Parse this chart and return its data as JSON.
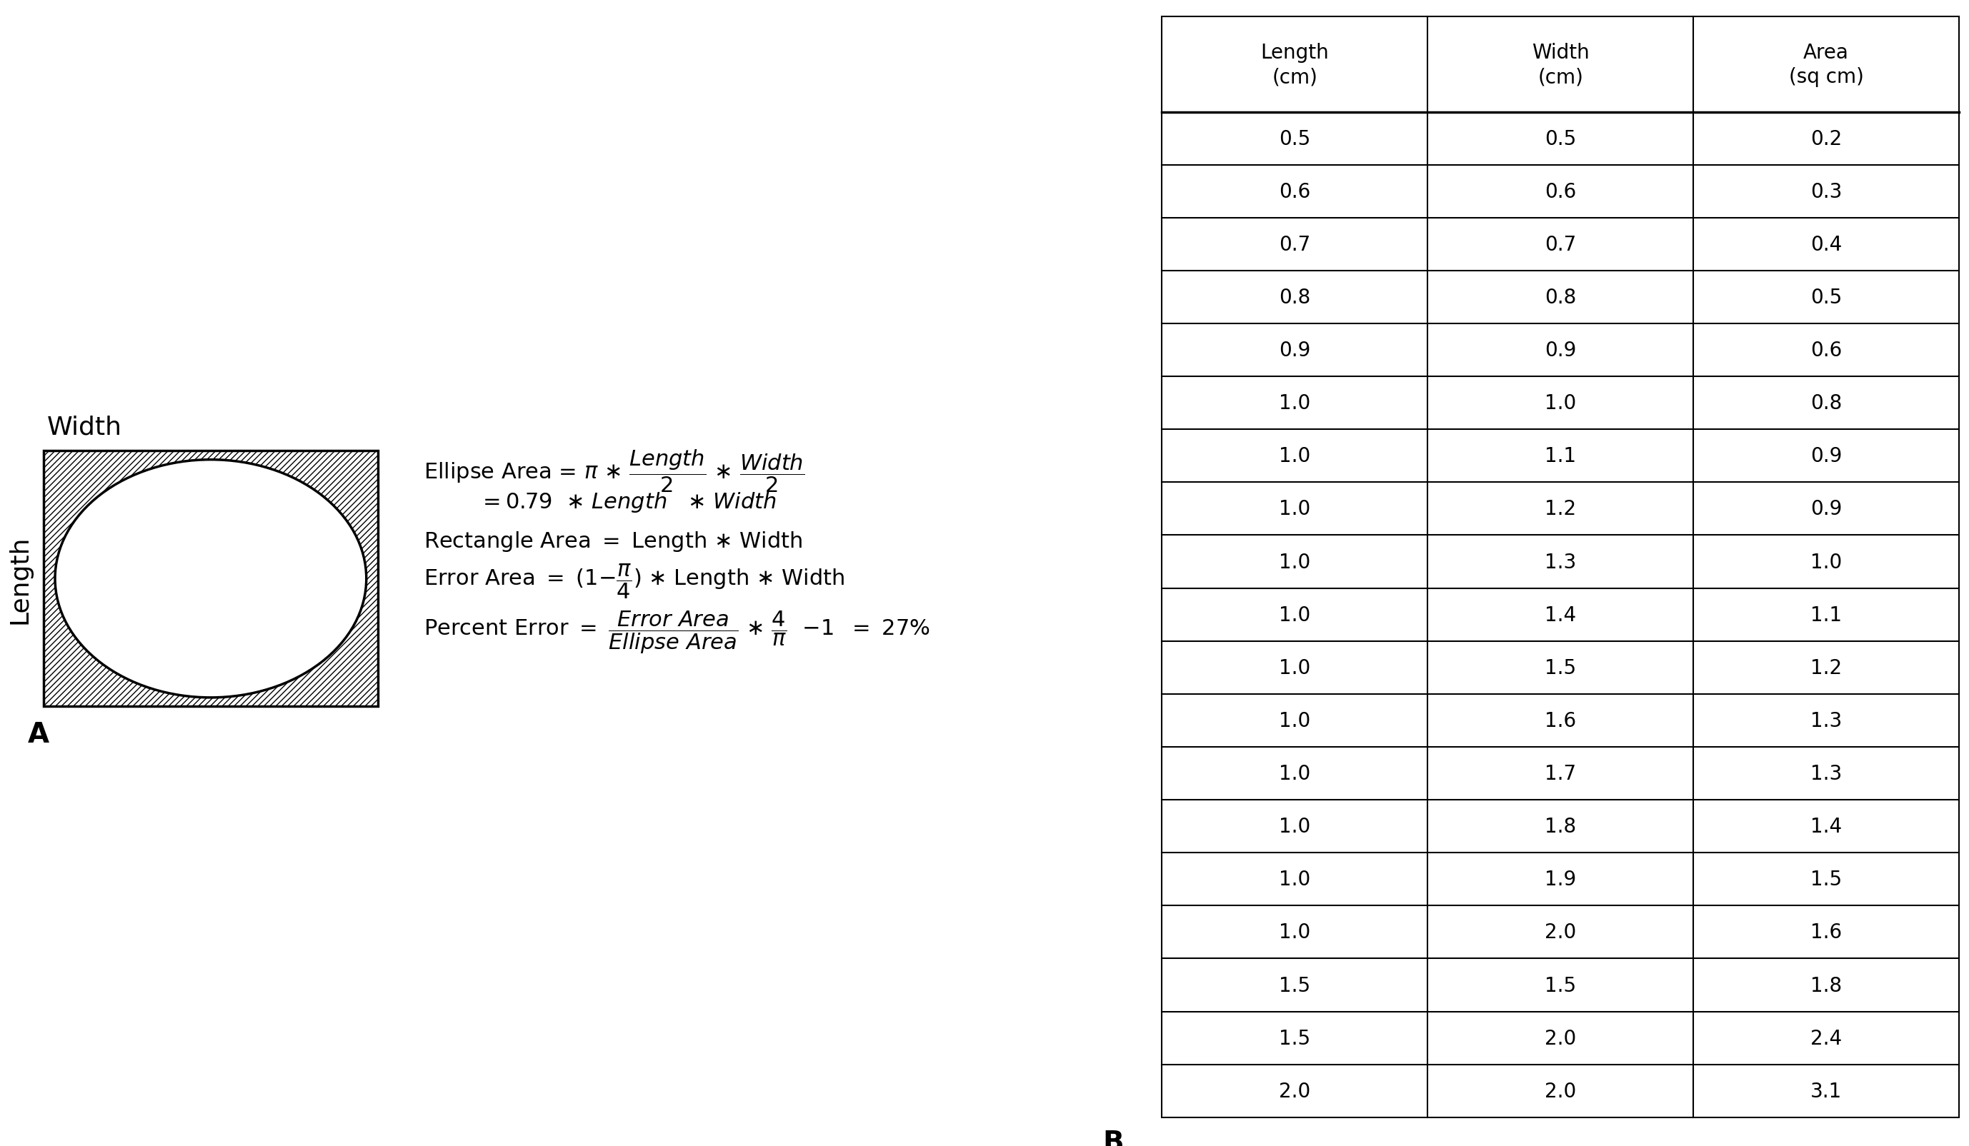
{
  "table_data": [
    [
      "Length\n(cm)",
      "Width\n(cm)",
      "Area\n(sq cm)"
    ],
    [
      "0.5",
      "0.5",
      "0.2"
    ],
    [
      "0.6",
      "0.6",
      "0.3"
    ],
    [
      "0.7",
      "0.7",
      "0.4"
    ],
    [
      "0.8",
      "0.8",
      "0.5"
    ],
    [
      "0.9",
      "0.9",
      "0.6"
    ],
    [
      "1.0",
      "1.0",
      "0.8"
    ],
    [
      "1.0",
      "1.1",
      "0.9"
    ],
    [
      "1.0",
      "1.2",
      "0.9"
    ],
    [
      "1.0",
      "1.3",
      "1.0"
    ],
    [
      "1.0",
      "1.4",
      "1.1"
    ],
    [
      "1.0",
      "1.5",
      "1.2"
    ],
    [
      "1.0",
      "1.6",
      "1.3"
    ],
    [
      "1.0",
      "1.7",
      "1.3"
    ],
    [
      "1.0",
      "1.8",
      "1.4"
    ],
    [
      "1.0",
      "1.9",
      "1.5"
    ],
    [
      "1.0",
      "2.0",
      "1.6"
    ],
    [
      "1.5",
      "1.5",
      "1.8"
    ],
    [
      "1.5",
      "2.0",
      "2.4"
    ],
    [
      "2.0",
      "2.0",
      "3.1"
    ]
  ],
  "label_A": "A",
  "label_B": "B",
  "width_label": "Width",
  "length_label": "Length",
  "bg_color": "#ffffff",
  "formula_fontsize": 22,
  "table_fontsize": 20
}
